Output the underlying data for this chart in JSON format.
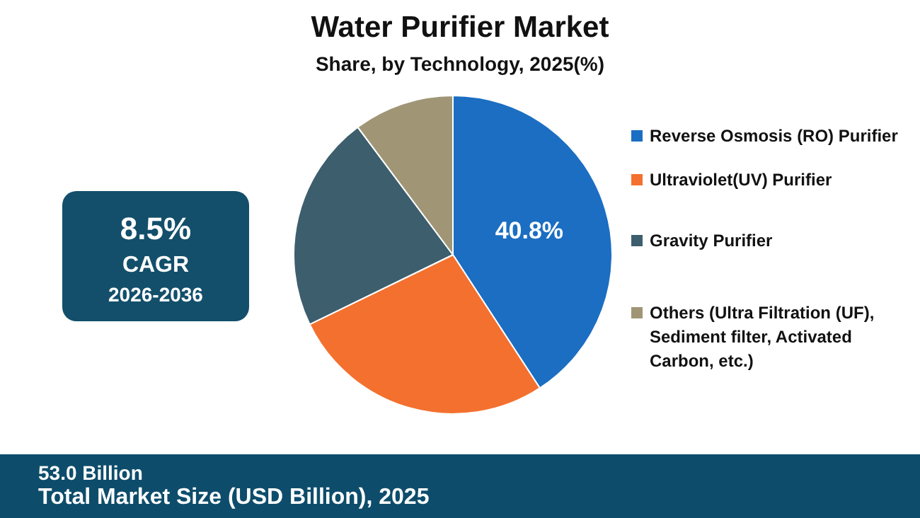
{
  "chart_data": {
    "type": "pie",
    "title": "Water Purifier Market",
    "subtitle": "Share, by Technology, 2025(%)",
    "categories": [
      "Reverse Osmosis (RO) Purifier",
      "Ultraviolet(UV) Purifier",
      "Gravity Purifier",
      "Others (Ultra Filtration (UF), Sediment filter, Activated Carbon, etc.)"
    ],
    "values": [
      40.8,
      27,
      22,
      10.2
    ],
    "colors": [
      "#1b6ec2",
      "#f4702e",
      "#3d5e6c",
      "#a09676"
    ],
    "value_labels": [
      "40.8%",
      null,
      null,
      null
    ],
    "legend": "right",
    "annotations": [
      "8.5%",
      "CAGR",
      "2026-2036",
      "53.0 Billion",
      "Total Market Size (USD Billion), 2025"
    ]
  }
}
